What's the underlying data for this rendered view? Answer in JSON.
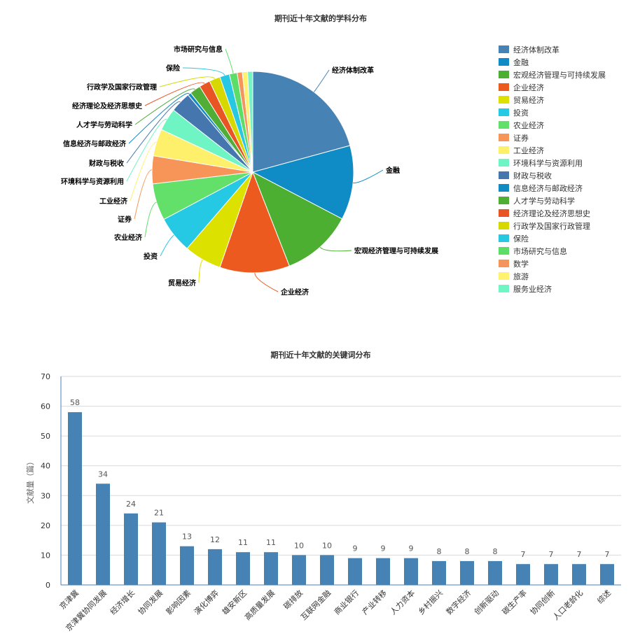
{
  "chart_data": [
    {
      "type": "pie",
      "title": "期刊近十年文献的学科分布",
      "legend_position": "right",
      "labels": [
        "经济体制改革",
        "金融",
        "宏观经济管理与可持续发展",
        "企业经济",
        "贸易经济",
        "投资",
        "农业经济",
        "证券",
        "工业经济",
        "环境科学与资源利用",
        "财政与税收",
        "信息经济与邮政经济",
        "人才学与劳动科学",
        "经济理论及经济思想史",
        "行政学及国家行政管理",
        "保险",
        "市场研究与信息",
        "数学",
        "旅游",
        "服务业经济"
      ],
      "values": [
        20.0,
        11.5,
        11.0,
        10.8,
        5.8,
        5.7,
        5.7,
        4.3,
        4.2,
        3.5,
        3.2,
        0.5,
        1.7,
        1.7,
        1.7,
        1.5,
        1.2,
        0.8,
        0.8,
        0.8
      ],
      "colors": [
        "#4682b4",
        "#0f8bc6",
        "#4caf32",
        "#ec5a1f",
        "#dde100",
        "#26c9e3",
        "#62e06a",
        "#f79558",
        "#fff06b",
        "#6ff5c3",
        "#4576ae",
        "#128ac3",
        "#50ad36",
        "#e85424",
        "#d6d800",
        "#29c8e2",
        "#5cdd68",
        "#f4955c",
        "#fef26f",
        "#72f5c5"
      ],
      "slice_labels": [
        "经济体制改革",
        "金融",
        "宏观经济管理与可持续发展",
        "企业经济",
        "贸易经济",
        "投资",
        "农业经济",
        "证券",
        "工业经济",
        "环境科学与资源利用",
        "财政与税收",
        "信息经济与邮政经济",
        "人才学与劳动科学",
        "经济理论及经济思想史",
        "行政学及国家行政管理",
        "保险",
        "市场研究与信息",
        "",
        "",
        ""
      ]
    },
    {
      "type": "bar",
      "title": "期刊近十年文献的关键词分布",
      "ylabel": "文献量（篇）",
      "ylim": [
        0,
        70
      ],
      "yticks": [
        0,
        10,
        20,
        30,
        40,
        50,
        60,
        70
      ],
      "grid": true,
      "color": "#4682b4",
      "categories": [
        "京津冀",
        "京津冀协同发展",
        "经济增长",
        "协同发展",
        "影响因素",
        "演化博弈",
        "雄安新区",
        "高质量发展",
        "碳排放",
        "互联网金融",
        "商业银行",
        "产业转移",
        "人力资本",
        "乡村振兴",
        "数字经济",
        "创新驱动",
        "碳生产率",
        "协同创新",
        "人口老龄化",
        "综述"
      ],
      "values": [
        58,
        34,
        24,
        21,
        13,
        12,
        11,
        11,
        10,
        10,
        9,
        9,
        9,
        8,
        8,
        8,
        7,
        7,
        7,
        7
      ]
    }
  ]
}
